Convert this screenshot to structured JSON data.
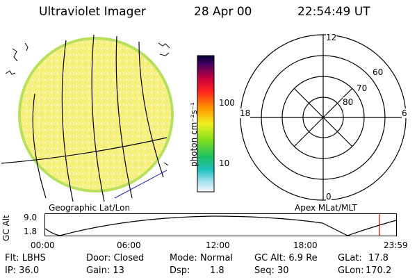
{
  "header": {
    "instrument": "Ultraviolet Imager",
    "date": "28 Apr 00",
    "time": "22:54:49 UT"
  },
  "colorbar": {
    "label": "photon cm⁻²s⁻¹",
    "ticks": [
      "100",
      "10"
    ]
  },
  "polar": {
    "mlt_labels": [
      "12",
      "18",
      "6",
      "0"
    ],
    "lat_labels": [
      "60",
      "70",
      "80"
    ]
  },
  "panel_titles": {
    "left": "Geographic Lat/Lon",
    "right": "Apex MLat/MLT"
  },
  "altitude_plot": {
    "ylabel": "GC Alt",
    "yticks": [
      "9.0",
      "1.8"
    ],
    "xticks": [
      "00:00",
      "06:00",
      "12:00",
      "18:00",
      "23:59"
    ],
    "current_time_marker": "22:54",
    "marker_color": "#e00000"
  },
  "info": {
    "flt": "Flt: LBHS",
    "door": "Door: Closed",
    "mode_label": "Mode:",
    "mode_value": "Normal",
    "gc_alt": "GC Alt: 6.9 Re",
    "glat_label": "GLat:",
    "glat_value": "17.8",
    "ip": "IP: 36.0",
    "gain": "Gain: 13",
    "dsp_label": "Dsp:",
    "dsp_value": "1.8",
    "seq": "Seq: 30",
    "glon_label": "GLon:",
    "glon_value": "170.2"
  },
  "colors": {
    "disk": "#f5ef7a",
    "disk_edge": "#80d060",
    "meridian": "#000000",
    "limb_line": "#2020c0"
  }
}
